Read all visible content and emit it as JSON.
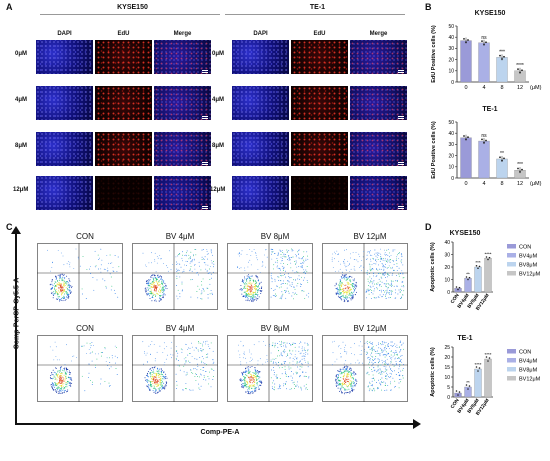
{
  "panels": {
    "a": "A",
    "b": "B",
    "c": "C",
    "d": "D"
  },
  "panelA": {
    "groups": [
      "KYSE150",
      "TE-1"
    ],
    "columns": [
      "DAPI",
      "EdU",
      "Merge"
    ],
    "rows": [
      "0μM",
      "4μM",
      "8μM",
      "12μM"
    ]
  },
  "panelB": {
    "top_title": "KYSE150",
    "bottom_title": "TE-1",
    "ylabel": "EdU Positive cells (%)",
    "unit": "(μM)"
  },
  "panelC": {
    "titles": [
      "CON",
      "BV 4μM",
      "BV 8μM",
      "BV 12μM",
      "CON",
      "BV 4μM",
      "BV 8μM",
      "BV 12μM"
    ],
    "xlabel": "Comp-PE-A",
    "ylabel": "Comp-PerCP-Cy5.5-A"
  },
  "panelD": {
    "top_title": "KYSE150",
    "bottom_title": "TE-1",
    "ylabel": "Apoptotic cells (%)",
    "legend": [
      "CON",
      "BV4μM",
      "BV8μM",
      "BV12μM"
    ]
  },
  "chart_data": [
    {
      "type": "bar",
      "title": "KYSE150",
      "ylabel": "EdU Positive cells (%)",
      "xlabel": "(μM)",
      "categories": [
        "0",
        "4",
        "8",
        "12"
      ],
      "values": [
        37,
        35,
        22,
        10
      ],
      "ylim": [
        0,
        50
      ],
      "annotations": [
        "",
        "ns",
        "***",
        "****"
      ],
      "colors": [
        "#9a9ad8",
        "#aab0e6",
        "#bcd4ee",
        "#c6c6c6"
      ]
    },
    {
      "type": "bar",
      "title": "TE-1",
      "ylabel": "EdU Positive cells (%)",
      "xlabel": "(μM)",
      "categories": [
        "0",
        "4",
        "8",
        "12"
      ],
      "values": [
        36,
        33,
        17,
        7
      ],
      "ylim": [
        0,
        50
      ],
      "annotations": [
        "",
        "ns",
        "**",
        "***"
      ],
      "colors": [
        "#9a9ad8",
        "#aab0e6",
        "#bcd4ee",
        "#c6c6c6"
      ]
    },
    {
      "type": "bar",
      "title": "KYSE150",
      "ylabel": "Apoptotic cells (%)",
      "categories": [
        "CON",
        "BV4μM",
        "BV8μM",
        "BV12μM"
      ],
      "values": [
        3,
        11,
        20,
        27
      ],
      "ylim": [
        0,
        40
      ],
      "annotations": [
        "",
        "**",
        "***",
        "****"
      ],
      "colors": [
        "#9a9ad8",
        "#aab0e6",
        "#bcd4ee",
        "#c6c6c6"
      ]
    },
    {
      "type": "bar",
      "title": "TE-1",
      "ylabel": "Apoptotic cells (%)",
      "categories": [
        "CON",
        "BV4μM",
        "BV8μM",
        "BV12μM"
      ],
      "values": [
        2,
        5,
        14,
        19
      ],
      "ylim": [
        0,
        25
      ],
      "annotations": [
        "",
        "**",
        "****",
        "****"
      ],
      "colors": [
        "#9a9ad8",
        "#aab0e6",
        "#bcd4ee",
        "#c6c6c6"
      ]
    }
  ]
}
